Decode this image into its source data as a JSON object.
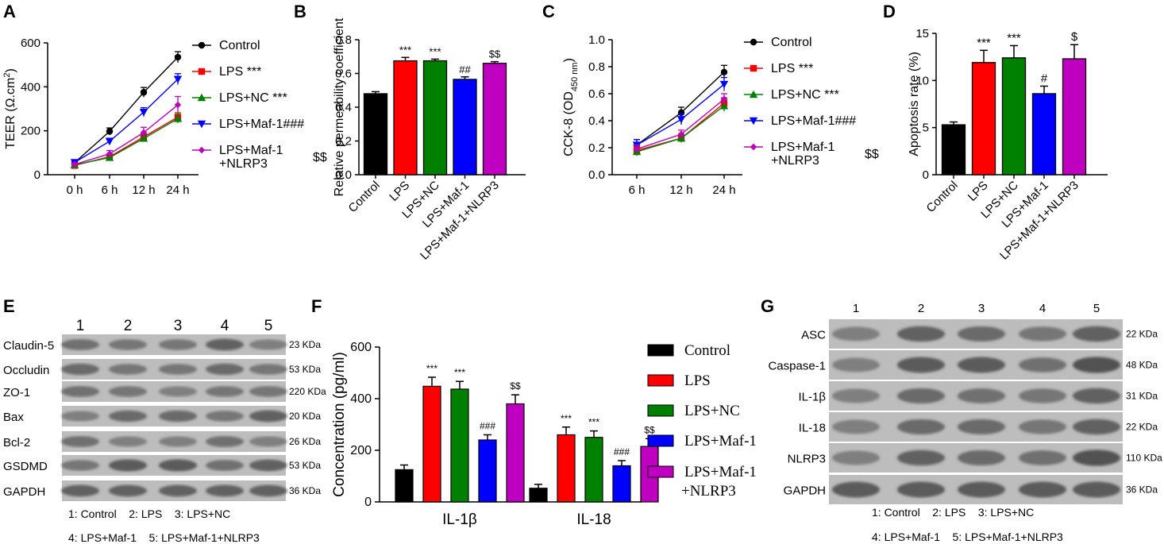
{
  "panels": {
    "A": "A",
    "B": "B",
    "C": "C",
    "D": "D",
    "E": "E",
    "F": "F",
    "G": "G"
  },
  "colors": {
    "control": "#000000",
    "lps": "#ff0000",
    "lpsnc": "#008000",
    "maf1": "#0000ff",
    "maf1nlrp3": "#c000c0"
  },
  "chart_data": [
    {
      "id": "A",
      "type": "line",
      "title": "",
      "ylabel": "TEER (Ω.cm²)",
      "ylabel_main": "TEER (Ω.cm",
      "ylabel_sup": "2",
      "ylabel_end": ")",
      "xlabel": "",
      "categories": [
        "0 h",
        "6 h",
        "12 h",
        "24 h"
      ],
      "ylim": [
        0,
        600
      ],
      "yticks": [
        0,
        200,
        400,
        600
      ],
      "series": [
        {
          "name": "Control",
          "sig": "",
          "values": [
            55,
            197,
            375,
            535
          ],
          "err": [
            6,
            16,
            22,
            25
          ]
        },
        {
          "name": "LPS",
          "sig": "***",
          "values": [
            42,
            82,
            172,
            262
          ],
          "err": [
            6,
            10,
            14,
            20
          ]
        },
        {
          "name": "LPS+NC",
          "sig": "***",
          "values": [
            45,
            78,
            165,
            255
          ],
          "err": [
            6,
            10,
            14,
            20
          ]
        },
        {
          "name": "LPS+Maf-1",
          "sig": "###",
          "values": [
            56,
            152,
            285,
            435
          ],
          "err": [
            6,
            14,
            20,
            25
          ]
        },
        {
          "name": "LPS+Maf-1+NLRP3",
          "sig": "$$",
          "values": [
            47,
            95,
            192,
            318
          ],
          "err": [
            6,
            15,
            24,
            38
          ]
        }
      ],
      "legend_labels": [
        "Control",
        "LPS ***",
        "LPS+NC ***",
        "LPS+Maf-1###",
        "LPS+Maf-1",
        "+NLRP3",
        "$$"
      ]
    },
    {
      "id": "B",
      "type": "bar",
      "ylabel": "Relative permeability coefficient",
      "categories": [
        "Control",
        "LPS",
        "LPS+NC",
        "LPS+Maf-1",
        "LPS+Maf-1+NLRP3"
      ],
      "values": [
        0.48,
        0.675,
        0.675,
        0.565,
        0.66
      ],
      "err": [
        0.012,
        0.02,
        0.01,
        0.015,
        0.01
      ],
      "sig": [
        "",
        "***",
        "***",
        "##",
        "$$"
      ],
      "ylim": [
        0,
        0.8
      ],
      "yticks": [
        "0.0",
        "0.2",
        "0.4",
        "0.6",
        "0.8"
      ]
    },
    {
      "id": "C",
      "type": "line",
      "ylabel": "CCK-8 (OD450 nm)",
      "ylabel_main": "CCK-8 (OD",
      "ylabel_sub": "450 nm",
      "ylabel_end": ")",
      "categories": [
        "6 h",
        "12 h",
        "24 h"
      ],
      "ylim": [
        0,
        1.0
      ],
      "yticks": [
        "0.0",
        "0.2",
        "0.4",
        "0.6",
        "0.8",
        "1.0"
      ],
      "series": [
        {
          "name": "Control",
          "sig": "",
          "values": [
            0.22,
            0.46,
            0.76
          ],
          "err": [
            0.04,
            0.04,
            0.05
          ]
        },
        {
          "name": "LPS",
          "sig": "***",
          "values": [
            0.18,
            0.27,
            0.53
          ],
          "err": [
            0.03,
            0.03,
            0.04
          ]
        },
        {
          "name": "LPS+NC",
          "sig": "***",
          "values": [
            0.17,
            0.27,
            0.51
          ],
          "err": [
            0.03,
            0.03,
            0.04
          ]
        },
        {
          "name": "LPS+Maf-1",
          "sig": "###",
          "values": [
            0.22,
            0.41,
            0.67
          ],
          "err": [
            0.04,
            0.04,
            0.05
          ]
        },
        {
          "name": "LPS+Maf-1+NLRP3",
          "sig": "$$",
          "values": [
            0.19,
            0.3,
            0.56
          ],
          "err": [
            0.03,
            0.03,
            0.04
          ]
        }
      ],
      "legend_labels": [
        "Control",
        "LPS ***",
        "LPS+NC ***",
        "LPS+Maf-1###",
        "LPS+Maf-1",
        "+NLRP3",
        "$$"
      ]
    },
    {
      "id": "D",
      "type": "bar",
      "ylabel": "Apoptosis rate (%)",
      "categories": [
        "Control",
        "LPS",
        "LPS+NC",
        "LPS+Maf-1",
        "LPS+Maf-1+NLRP3"
      ],
      "values": [
        5.3,
        11.9,
        12.4,
        8.6,
        12.3
      ],
      "err": [
        0.3,
        1.3,
        1.3,
        0.8,
        1.5
      ],
      "sig": [
        "",
        "***",
        "***",
        "#",
        "$"
      ],
      "ylim": [
        0,
        15
      ],
      "yticks": [
        "0",
        "5",
        "10",
        "15"
      ]
    },
    {
      "id": "F",
      "type": "bar",
      "ylabel": "Concentration (pg/ml)",
      "categories": [
        "IL-1β",
        "IL-18"
      ],
      "series": [
        {
          "name": "Control",
          "values": [
            125,
            53
          ],
          "err": [
            18,
            15
          ]
        },
        {
          "name": "LPS",
          "values": [
            448,
            260
          ],
          "err": [
            35,
            30
          ]
        },
        {
          "name": "LPS+NC",
          "values": [
            437,
            250
          ],
          "err": [
            30,
            25
          ]
        },
        {
          "name": "LPS+Maf-1",
          "values": [
            240,
            140
          ],
          "err": [
            20,
            20
          ]
        },
        {
          "name": "LPS+Maf-1+NLRP3",
          "values": [
            380,
            215
          ],
          "err": [
            35,
            30
          ]
        }
      ],
      "sig": [
        [
          "",
          "***",
          "***",
          "###",
          "$$"
        ],
        [
          "",
          "***",
          "***",
          "###",
          "$$"
        ]
      ],
      "ylim": [
        0,
        600
      ],
      "yticks": [
        "0",
        "200",
        "400",
        "600"
      ],
      "legend_labels": [
        "Control",
        "LPS",
        "LPS+NC",
        "LPS+Maf-1",
        "LPS+Maf-1",
        "+NLRP3"
      ]
    }
  ],
  "blotE": {
    "lanes": [
      "1",
      "2",
      "3",
      "4",
      "5"
    ],
    "rows": [
      {
        "label": "Claudin-5",
        "kda": "23 KDa"
      },
      {
        "label": "Occludin",
        "kda": "53 KDa"
      },
      {
        "label": "ZO-1",
        "kda": "220 KDa"
      },
      {
        "label": "Bax",
        "kda": "20 KDa"
      },
      {
        "label": "Bcl-2",
        "kda": "26 KDa"
      },
      {
        "label": "GSDMD",
        "kda": "53 KDa"
      },
      {
        "label": "GAPDH",
        "kda": "36 KDa"
      }
    ],
    "legend1": "1: Control    2: LPS    3: LPS+NC",
    "legend2": "4: LPS+Maf-1    5: LPS+Maf-1+NLRP3"
  },
  "blotG": {
    "lanes": [
      "1",
      "2",
      "3",
      "4",
      "5"
    ],
    "rows": [
      {
        "label": "ASC",
        "kda": "22 KDa"
      },
      {
        "label": "Caspase-1",
        "kda": "48 KDa"
      },
      {
        "label": "IL-1β",
        "kda": "31 KDa"
      },
      {
        "label": "IL-18",
        "kda": "22 KDa"
      },
      {
        "label": "NLRP3",
        "kda": "110 KDa"
      },
      {
        "label": "GAPDH",
        "kda": "36 KDa"
      }
    ],
    "legend1": "1: Control    2: LPS    3: LPS+NC",
    "legend2": "4: LPS+Maf-1    5: LPS+Maf-1+NLRP3"
  }
}
